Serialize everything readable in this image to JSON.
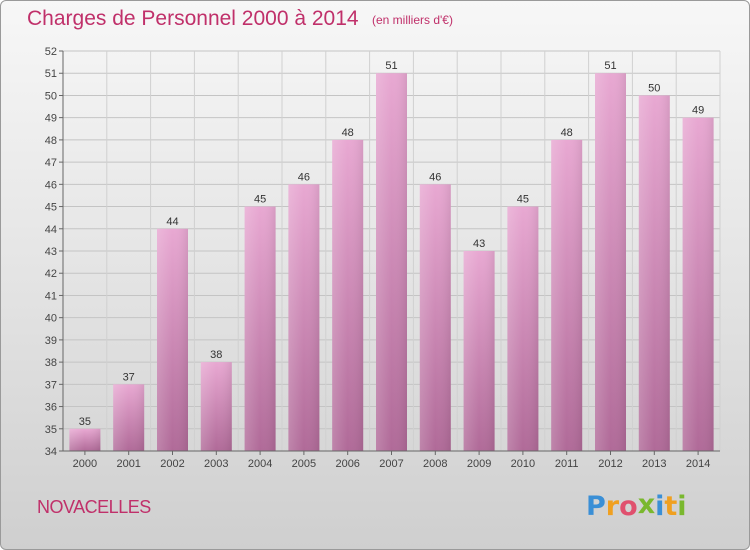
{
  "header": {
    "title": "Charges de Personnel 2000 à 2014",
    "subtitle": "(en milliers d'€)"
  },
  "footer": {
    "town": "NOVACELLES",
    "logo": "Proxiti",
    "logo_letters": [
      "P",
      "r",
      "o",
      "x",
      "i",
      "t",
      "i"
    ],
    "logo_colors": [
      "#3a8fd6",
      "#f0a020",
      "#e0506e",
      "#7ab82e",
      "#3a8fd6",
      "#f0a020",
      "#7ab82e"
    ]
  },
  "chart_data": {
    "type": "bar",
    "title": "Charges de Personnel 2000 à 2014",
    "subtitle": "(en milliers d'€)",
    "categories": [
      "2000",
      "2001",
      "2002",
      "2003",
      "2004",
      "2005",
      "2006",
      "2007",
      "2008",
      "2009",
      "2010",
      "2011",
      "2012",
      "2013",
      "2014"
    ],
    "values": [
      35,
      37,
      44,
      38,
      45,
      46,
      48,
      51,
      46,
      43,
      45,
      48,
      51,
      50,
      49
    ],
    "ylim": [
      34,
      52
    ],
    "yticks": [
      34,
      35,
      36,
      37,
      38,
      39,
      40,
      41,
      42,
      43,
      44,
      45,
      46,
      47,
      48,
      49,
      50,
      51,
      52
    ],
    "grid": true,
    "bar_color": "#d68fbd",
    "label_color": "#333333"
  }
}
